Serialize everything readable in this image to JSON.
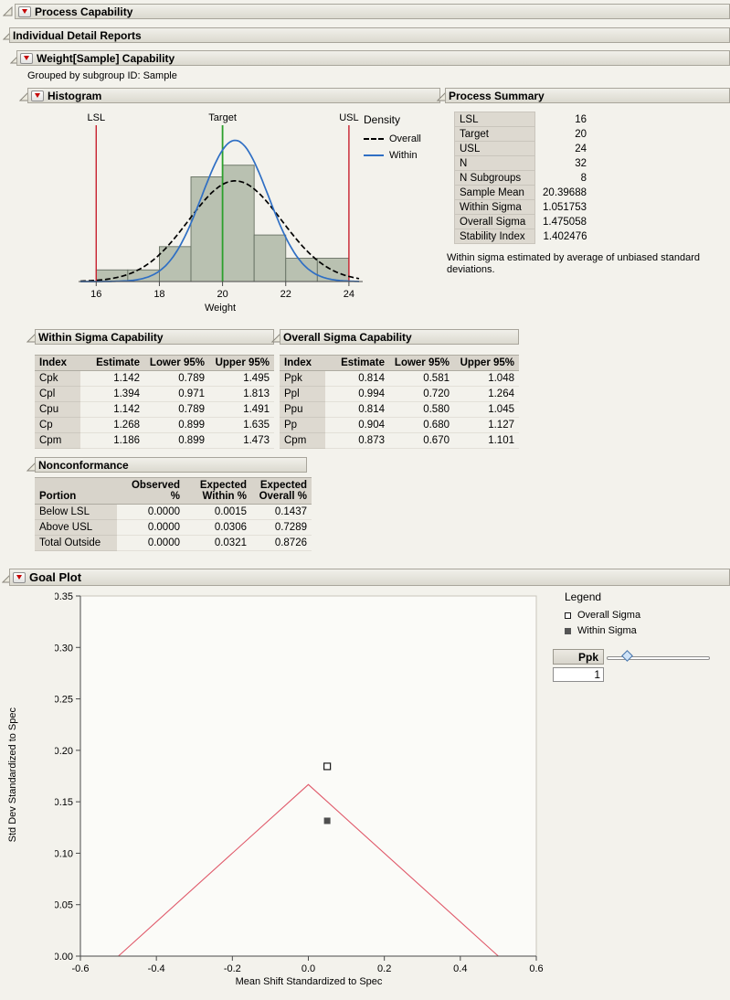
{
  "sections": {
    "process_capability": "Process Capability",
    "individual_detail_reports": "Individual Detail Reports",
    "weight_capability": "Weight[Sample] Capability",
    "grouped_by": "Grouped by subgroup ID: Sample",
    "histogram": "Histogram",
    "process_summary": "Process Summary",
    "within_capability": "Within Sigma Capability",
    "overall_capability": "Overall Sigma Capability",
    "nonconformance": "Nonconformance",
    "goal_plot": "Goal Plot"
  },
  "process_summary": {
    "rows": [
      {
        "label": "LSL",
        "value": "16"
      },
      {
        "label": "Target",
        "value": "20"
      },
      {
        "label": "USL",
        "value": "24"
      },
      {
        "label": "N",
        "value": "32"
      },
      {
        "label": "N Subgroups",
        "value": "8"
      },
      {
        "label": "Sample Mean",
        "value": "20.39688"
      },
      {
        "label": "Within Sigma",
        "value": "1.051753"
      },
      {
        "label": "Overall Sigma",
        "value": "1.475058"
      },
      {
        "label": "Stability Index",
        "value": "1.402476"
      }
    ],
    "note": "Within sigma estimated by average of unbiased standard deviations."
  },
  "within_capability": {
    "headers": [
      "Index",
      "Estimate",
      "Lower 95%",
      "Upper 95%"
    ],
    "rows": [
      {
        "index": "Cpk",
        "estimate": "1.142",
        "lower": "0.789",
        "upper": "1.495"
      },
      {
        "index": "Cpl",
        "estimate": "1.394",
        "lower": "0.971",
        "upper": "1.813"
      },
      {
        "index": "Cpu",
        "estimate": "1.142",
        "lower": "0.789",
        "upper": "1.491"
      },
      {
        "index": "Cp",
        "estimate": "1.268",
        "lower": "0.899",
        "upper": "1.635"
      },
      {
        "index": "Cpm",
        "estimate": "1.186",
        "lower": "0.899",
        "upper": "1.473"
      }
    ]
  },
  "overall_capability": {
    "headers": [
      "Index",
      "Estimate",
      "Lower 95%",
      "Upper 95%"
    ],
    "rows": [
      {
        "index": "Ppk",
        "estimate": "0.814",
        "lower": "0.581",
        "upper": "1.048"
      },
      {
        "index": "Ppl",
        "estimate": "0.994",
        "lower": "0.720",
        "upper": "1.264"
      },
      {
        "index": "Ppu",
        "estimate": "0.814",
        "lower": "0.580",
        "upper": "1.045"
      },
      {
        "index": "Pp",
        "estimate": "0.904",
        "lower": "0.680",
        "upper": "1.127"
      },
      {
        "index": "Cpm",
        "estimate": "0.873",
        "lower": "0.670",
        "upper": "1.101"
      }
    ]
  },
  "nonconformance": {
    "headers": {
      "portion": "Portion",
      "observed": "Observed %",
      "expected_within": "Expected\nWithin %",
      "expected_overall": "Expected\nOverall %"
    },
    "rows": [
      {
        "portion": "Below LSL",
        "observed": "0.0000",
        "expected_within": "0.0015",
        "expected_overall": "0.1437"
      },
      {
        "portion": "Above USL",
        "observed": "0.0000",
        "expected_within": "0.0306",
        "expected_overall": "0.7289"
      },
      {
        "portion": "Total Outside",
        "observed": "0.0000",
        "expected_within": "0.0321",
        "expected_overall": "0.8726"
      }
    ]
  },
  "goal_plot_controls": {
    "ppk_label": "Ppk",
    "ppk_value": "1"
  },
  "chart_data": [
    {
      "type": "bar",
      "subtype": "histogram",
      "title": "Histogram",
      "xlabel": "Weight",
      "x_ticks": [
        16,
        18,
        20,
        22,
        24
      ],
      "x_range": [
        15.5,
        24.35
      ],
      "bin_start": 16,
      "bin_width": 1,
      "bin_counts": [
        1,
        1,
        3,
        9,
        10,
        4,
        2,
        2
      ],
      "n": 32,
      "lsl": 16,
      "target": 20,
      "usl": 24,
      "ref_labels": {
        "lsl": "LSL",
        "target": "Target",
        "usl": "USL"
      },
      "legend_title": "Density",
      "curves": [
        {
          "name": "Overall",
          "mean": 20.39688,
          "sigma": 1.475058,
          "style": "dashed",
          "color": "#000000"
        },
        {
          "name": "Within",
          "mean": 20.39688,
          "sigma": 1.051753,
          "style": "solid",
          "color": "#2f6fc4"
        }
      ],
      "colors": {
        "bar_fill": "#b9c1b1",
        "bar_stroke": "#667062",
        "limit_line": "#c8202e",
        "target_line": "#2ca02c"
      }
    },
    {
      "type": "scatter",
      "title": "Goal Plot",
      "xlabel": "Mean Shift Standardized to Spec",
      "ylabel": "Std Dev Standardized to Spec",
      "xlim": [
        -0.6,
        0.6
      ],
      "ylim": [
        0,
        0.35
      ],
      "x_ticks": [
        -0.6,
        -0.4,
        -0.2,
        0.0,
        0.2,
        0.4,
        0.6
      ],
      "y_ticks": [
        0.0,
        0.05,
        0.1,
        0.15,
        0.2,
        0.25,
        0.3,
        0.35
      ],
      "goal_triangle": [
        [
          -0.5,
          0
        ],
        [
          0,
          0.1667
        ],
        [
          0.5,
          0
        ]
      ],
      "legend_title": "Legend",
      "points": [
        {
          "name": "Overall Sigma",
          "x": 0.0496,
          "y": 0.1844,
          "marker": "open-square"
        },
        {
          "name": "Within Sigma",
          "x": 0.0496,
          "y": 0.1315,
          "marker": "filled-square"
        }
      ],
      "colors": {
        "goal_line": "#e05a6b"
      }
    }
  ]
}
